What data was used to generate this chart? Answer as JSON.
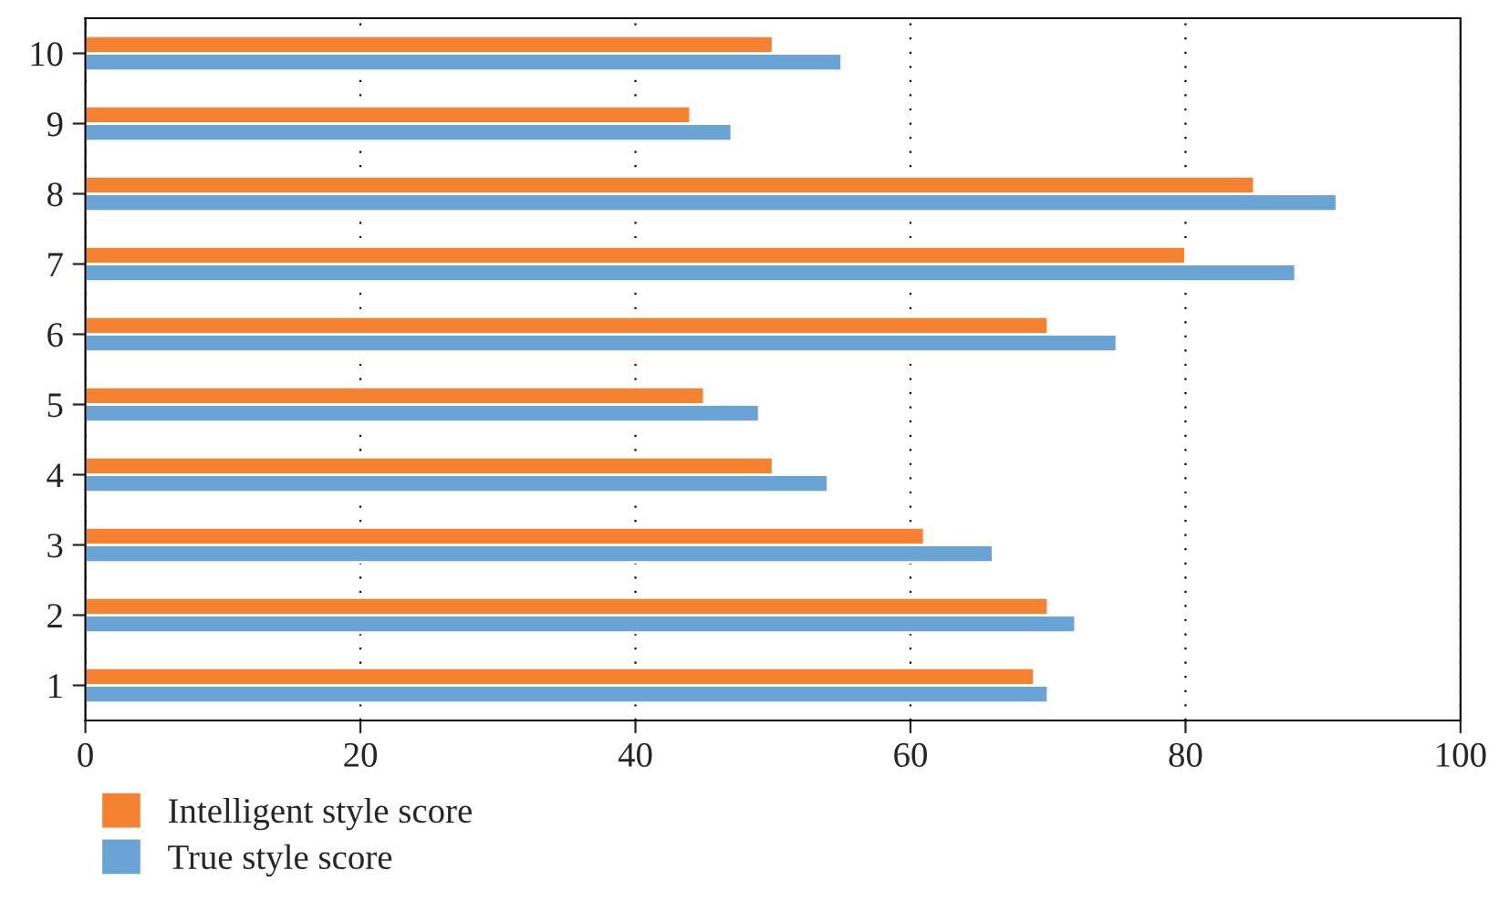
{
  "chart_data": {
    "type": "bar",
    "orientation": "horizontal",
    "categories": [
      "10",
      "9",
      "8",
      "7",
      "6",
      "5",
      "4",
      "3",
      "2",
      "1"
    ],
    "series": [
      {
        "name": "Intelligent style score",
        "color": "#f58231",
        "values": [
          50,
          44,
          85,
          80,
          70,
          45,
          50,
          61,
          70,
          69
        ]
      },
      {
        "name": "True style score",
        "color": "#6aa3d5",
        "values": [
          55,
          47,
          91,
          88,
          75,
          49,
          54,
          66,
          72,
          70
        ]
      }
    ],
    "xlim": [
      0,
      100
    ],
    "xticks": [
      0,
      20,
      40,
      60,
      80,
      100
    ],
    "grid": "x",
    "legend": "bottom left"
  }
}
